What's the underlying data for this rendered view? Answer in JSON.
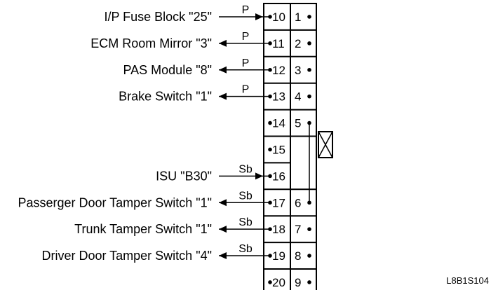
{
  "connector": {
    "left_column_pins": [
      "10",
      "11",
      "12",
      "13",
      "14",
      "15",
      "16",
      "17",
      "18",
      "19",
      "20"
    ],
    "right_column_pins": [
      "1",
      "2",
      "3",
      "4",
      "5",
      "6",
      "7",
      "8",
      "9"
    ]
  },
  "circuits": [
    {
      "label": "I/P Fuse Block \"25\"",
      "wire_color": "P",
      "pin": "10",
      "direction": "in"
    },
    {
      "label": "ECM Room Mirror \"3\"",
      "wire_color": "P",
      "pin": "11",
      "direction": "out"
    },
    {
      "label": "PAS Module \"8\"",
      "wire_color": "P",
      "pin": "12",
      "direction": "out"
    },
    {
      "label": "Brake Switch \"1\"",
      "wire_color": "P",
      "pin": "13",
      "direction": "out"
    },
    {
      "label": "ISU \"B30\"",
      "wire_color": "Sb",
      "pin": "16",
      "direction": "in"
    },
    {
      "label": "Passerger Door Tamper Switch \"1\"",
      "wire_color": "Sb",
      "pin": "17",
      "direction": "out"
    },
    {
      "label": "Trunk Tamper Switch \"1\"",
      "wire_color": "Sb",
      "pin": "18",
      "direction": "out"
    },
    {
      "label": "Driver Door Tamper Switch \"4\"",
      "wire_color": "Sb",
      "pin": "19",
      "direction": "out"
    }
  ],
  "diagram_code": "L8B1S104",
  "colors": {
    "line": "#000000",
    "background": "#ffffff"
  }
}
